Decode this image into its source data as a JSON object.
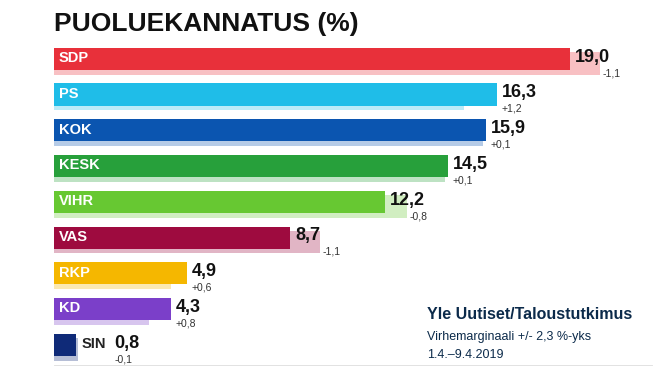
{
  "chart_data": {
    "type": "bar",
    "orientation": "horizontal",
    "title": "PUOLUEKANNATUS (%)",
    "categories": [
      "SDP",
      "PS",
      "KOK",
      "KESK",
      "VIHR",
      "VAS",
      "RKP",
      "KD",
      "SIN"
    ],
    "values": [
      19.0,
      16.3,
      15.9,
      14.5,
      12.2,
      8.7,
      4.9,
      4.3,
      0.8
    ],
    "value_labels": [
      "19,0",
      "16,3",
      "15,9",
      "14,5",
      "12,2",
      "8,7",
      "4,9",
      "4,3",
      "0,8"
    ],
    "changes": [
      -1.1,
      1.2,
      0.1,
      0.1,
      -0.8,
      -1.1,
      0.6,
      0.8,
      -0.1
    ],
    "change_labels": [
      "-1,1",
      "+1,2",
      "+0,1",
      "+0,1",
      "-0,8",
      "-1,1",
      "+0,6",
      "+0,8",
      "-0,1"
    ],
    "colors": [
      "#e8303a",
      "#1fbde8",
      "#0b55b0",
      "#27a03b",
      "#67c832",
      "#9e0b3f",
      "#f5b700",
      "#7b3fc9",
      "#0f2a78"
    ],
    "xlim": [
      0,
      22
    ],
    "tick_labels": false,
    "data_labels": true,
    "grid": false,
    "annotations": [
      "Yle Uutiset/Taloustutkimus",
      "Virhemarginaali +/- 2,3 %-yks",
      "1.4.–9.4.2019"
    ]
  }
}
